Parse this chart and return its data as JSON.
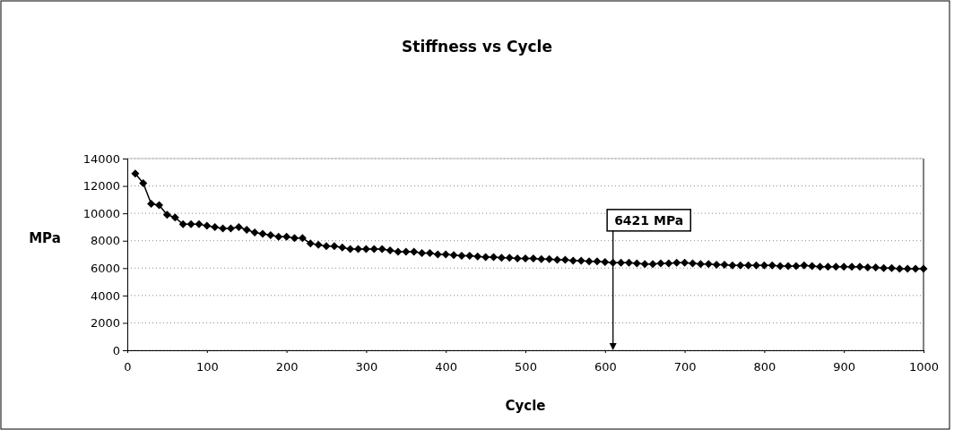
{
  "chart_data": {
    "type": "line",
    "title": "Stiffness vs Cycle",
    "xlabel": "Cycle",
    "ylabel": "MPa",
    "x": [
      10,
      20,
      30,
      40,
      50,
      60,
      70,
      80,
      90,
      100,
      110,
      120,
      130,
      140,
      150,
      160,
      170,
      180,
      190,
      200,
      210,
      220,
      230,
      240,
      250,
      260,
      270,
      280,
      290,
      300,
      310,
      320,
      330,
      340,
      350,
      360,
      370,
      380,
      390,
      400,
      410,
      420,
      430,
      440,
      450,
      460,
      470,
      480,
      490,
      500,
      510,
      520,
      530,
      540,
      550,
      560,
      570,
      580,
      590,
      600,
      610,
      620,
      630,
      640,
      650,
      660,
      670,
      680,
      690,
      700,
      710,
      720,
      730,
      740,
      750,
      760,
      770,
      780,
      790,
      800,
      810,
      820,
      830,
      840,
      850,
      860,
      870,
      880,
      890,
      900,
      910,
      920,
      930,
      940,
      950,
      960,
      970,
      980,
      990,
      1000
    ],
    "series": [
      {
        "color": "#000000",
        "values": [
          12900,
          12200,
          10700,
          10600,
          9900,
          9700,
          9200,
          9200,
          9200,
          9100,
          9000,
          8900,
          8900,
          9000,
          8800,
          8600,
          8500,
          8400,
          8300,
          8300,
          8200,
          8200,
          7800,
          7700,
          7600,
          7600,
          7500,
          7400,
          7400,
          7400,
          7400,
          7400,
          7300,
          7200,
          7200,
          7200,
          7100,
          7100,
          7000,
          7000,
          6950,
          6900,
          6900,
          6850,
          6800,
          6800,
          6750,
          6750,
          6700,
          6700,
          6700,
          6650,
          6650,
          6600,
          6600,
          6550,
          6550,
          6500,
          6500,
          6450,
          6400,
          6400,
          6400,
          6350,
          6300,
          6300,
          6350,
          6350,
          6400,
          6400,
          6350,
          6300,
          6300,
          6250,
          6250,
          6200,
          6200,
          6200,
          6200,
          6200,
          6200,
          6150,
          6150,
          6150,
          6200,
          6150,
          6100,
          6100,
          6100,
          6100,
          6100,
          6100,
          6050,
          6050,
          6000,
          6000,
          5950,
          5950,
          5950,
          5950
        ]
      }
    ],
    "xlim": [
      0,
      1000
    ],
    "xticks": [
      0,
      100,
      200,
      300,
      400,
      500,
      600,
      700,
      800,
      900,
      1000
    ],
    "ylim": [
      0,
      14000
    ],
    "yticks": [
      0,
      2000,
      4000,
      6000,
      8000,
      10000,
      12000,
      14000
    ],
    "grid": "y",
    "marker": "diamond",
    "line_style": "solid",
    "annotations": [
      {
        "text": "6421 MPa",
        "x": 610,
        "y": 6421
      }
    ]
  }
}
